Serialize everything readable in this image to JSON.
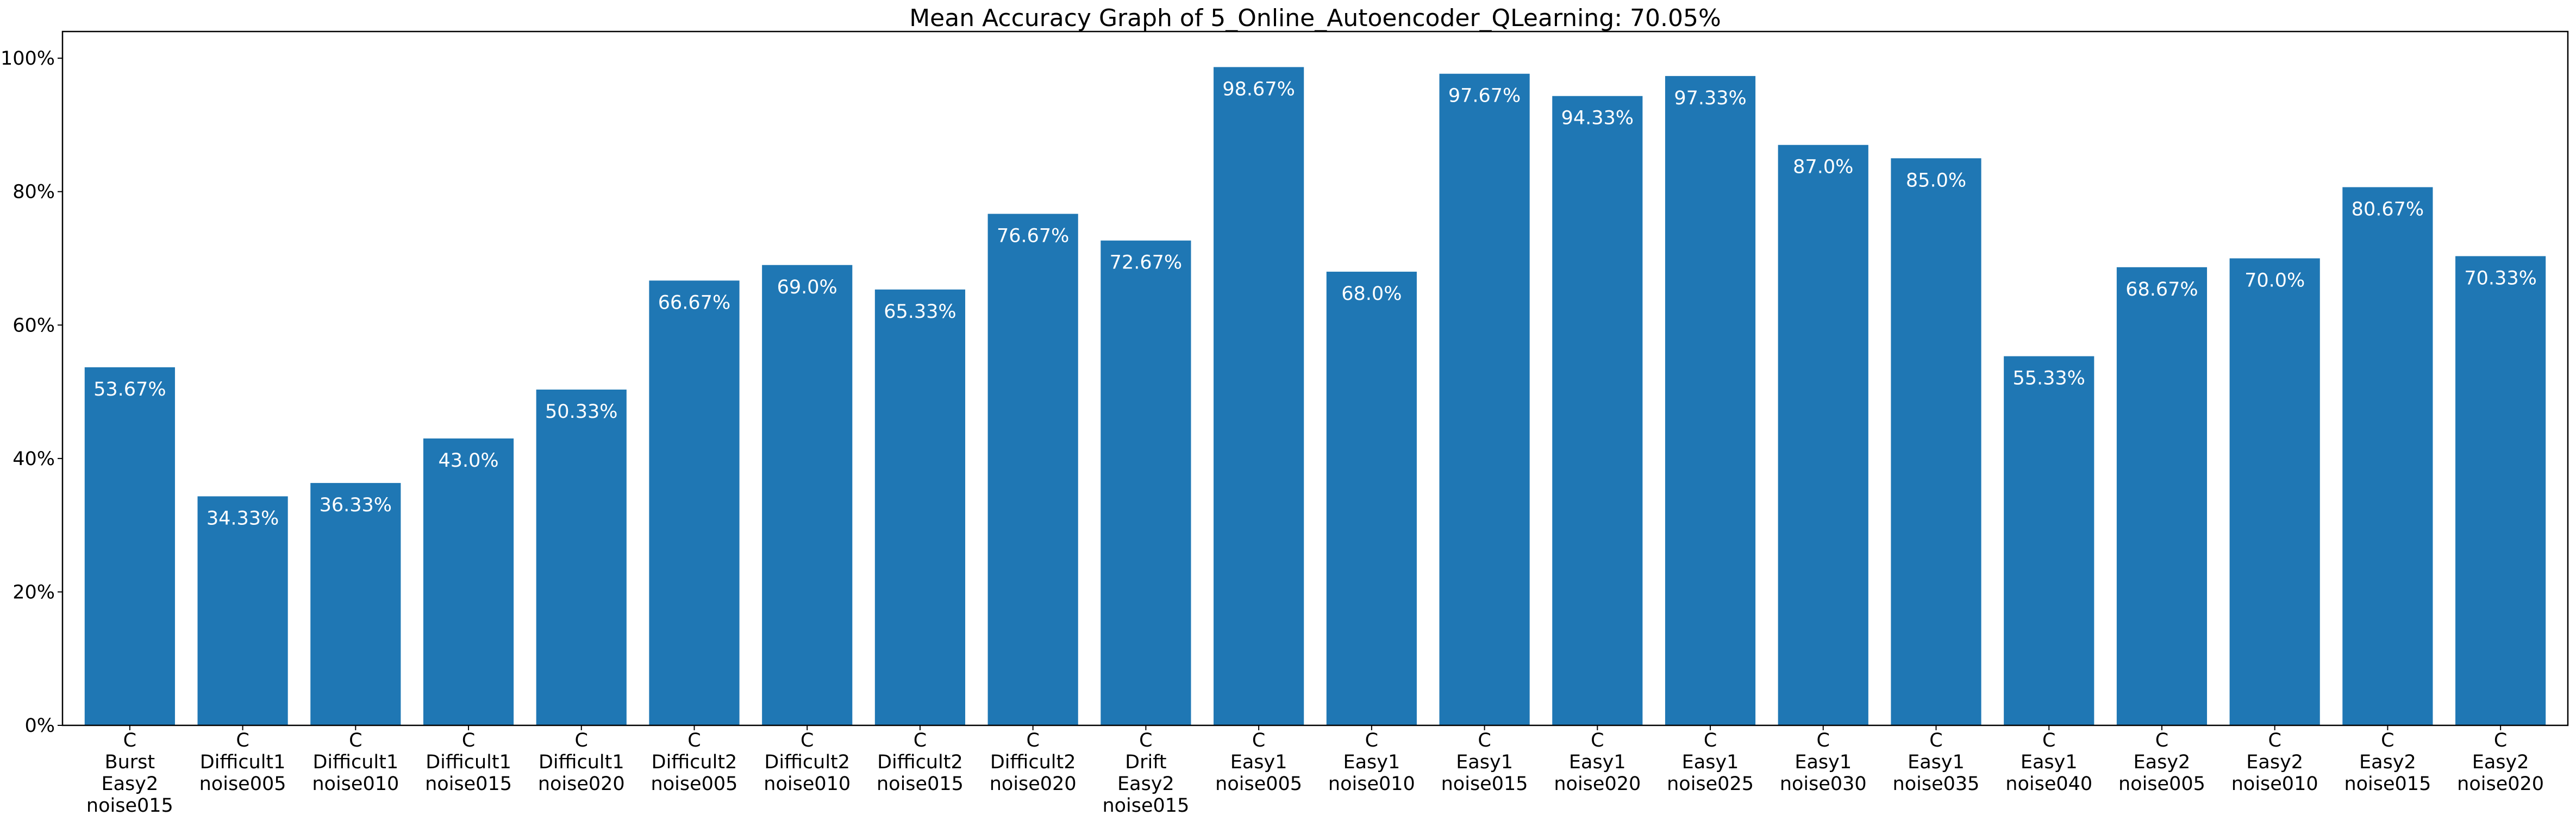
{
  "chart_data": {
    "type": "bar",
    "title": "Mean Accuracy Graph of 5_Online_Autoencoder_QLearning: 70.05%",
    "xlabel": "",
    "ylabel": "",
    "ylim": [
      0,
      104
    ],
    "yticks": [
      0,
      20,
      40,
      60,
      80,
      100
    ],
    "ytick_labels": [
      "0%",
      "20%",
      "40%",
      "60%",
      "80%",
      "100%"
    ],
    "grid": false,
    "bar_color": "#1f77b4",
    "label_color": "#ffffff",
    "categories": [
      [
        "C",
        "Burst",
        "Easy2",
        "noise015"
      ],
      [
        "C",
        "Difficult1",
        "noise005"
      ],
      [
        "C",
        "Difficult1",
        "noise010"
      ],
      [
        "C",
        "Difficult1",
        "noise015"
      ],
      [
        "C",
        "Difficult1",
        "noise020"
      ],
      [
        "C",
        "Difficult2",
        "noise005"
      ],
      [
        "C",
        "Difficult2",
        "noise010"
      ],
      [
        "C",
        "Difficult2",
        "noise015"
      ],
      [
        "C",
        "Difficult2",
        "noise020"
      ],
      [
        "C",
        "Drift",
        "Easy2",
        "noise015"
      ],
      [
        "C",
        "Easy1",
        "noise005"
      ],
      [
        "C",
        "Easy1",
        "noise010"
      ],
      [
        "C",
        "Easy1",
        "noise015"
      ],
      [
        "C",
        "Easy1",
        "noise020"
      ],
      [
        "C",
        "Easy1",
        "noise025"
      ],
      [
        "C",
        "Easy1",
        "noise030"
      ],
      [
        "C",
        "Easy1",
        "noise035"
      ],
      [
        "C",
        "Easy1",
        "noise040"
      ],
      [
        "C",
        "Easy2",
        "noise005"
      ],
      [
        "C",
        "Easy2",
        "noise010"
      ],
      [
        "C",
        "Easy2",
        "noise015"
      ],
      [
        "C",
        "Easy2",
        "noise020"
      ]
    ],
    "values": [
      53.67,
      34.33,
      36.33,
      43.0,
      50.33,
      66.67,
      69.0,
      65.33,
      76.67,
      72.67,
      98.67,
      68.0,
      97.67,
      94.33,
      97.33,
      87.0,
      85.0,
      55.33,
      68.67,
      70.0,
      80.67,
      70.33
    ],
    "value_labels": [
      "53.67%",
      "34.33%",
      "36.33%",
      "43.0%",
      "50.33%",
      "66.67%",
      "69.0%",
      "65.33%",
      "76.67%",
      "72.67%",
      "98.67%",
      "68.0%",
      "97.67%",
      "94.33%",
      "97.33%",
      "87.0%",
      "85.0%",
      "55.33%",
      "68.67%",
      "70.0%",
      "80.67%",
      "70.33%"
    ]
  }
}
